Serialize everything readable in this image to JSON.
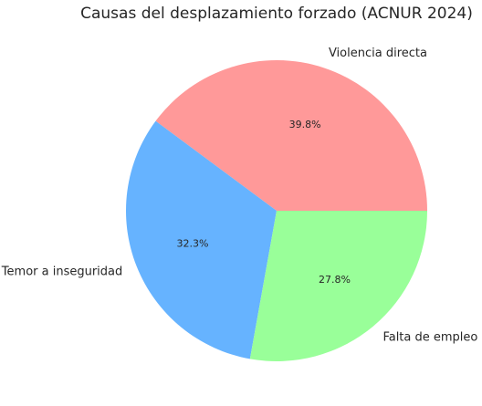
{
  "chart_data": {
    "type": "pie",
    "title": "Causas del desplazamiento forzado (ACNUR 2024)",
    "categories": [
      "Violencia directa",
      "Temor a inseguridad",
      "Falta de empleo"
    ],
    "values": [
      39.8,
      32.3,
      27.8
    ],
    "value_labels": [
      "39.8%",
      "32.3%",
      "27.8%"
    ],
    "colors": [
      "#ff9999",
      "#66b3ff",
      "#99ff99"
    ]
  }
}
